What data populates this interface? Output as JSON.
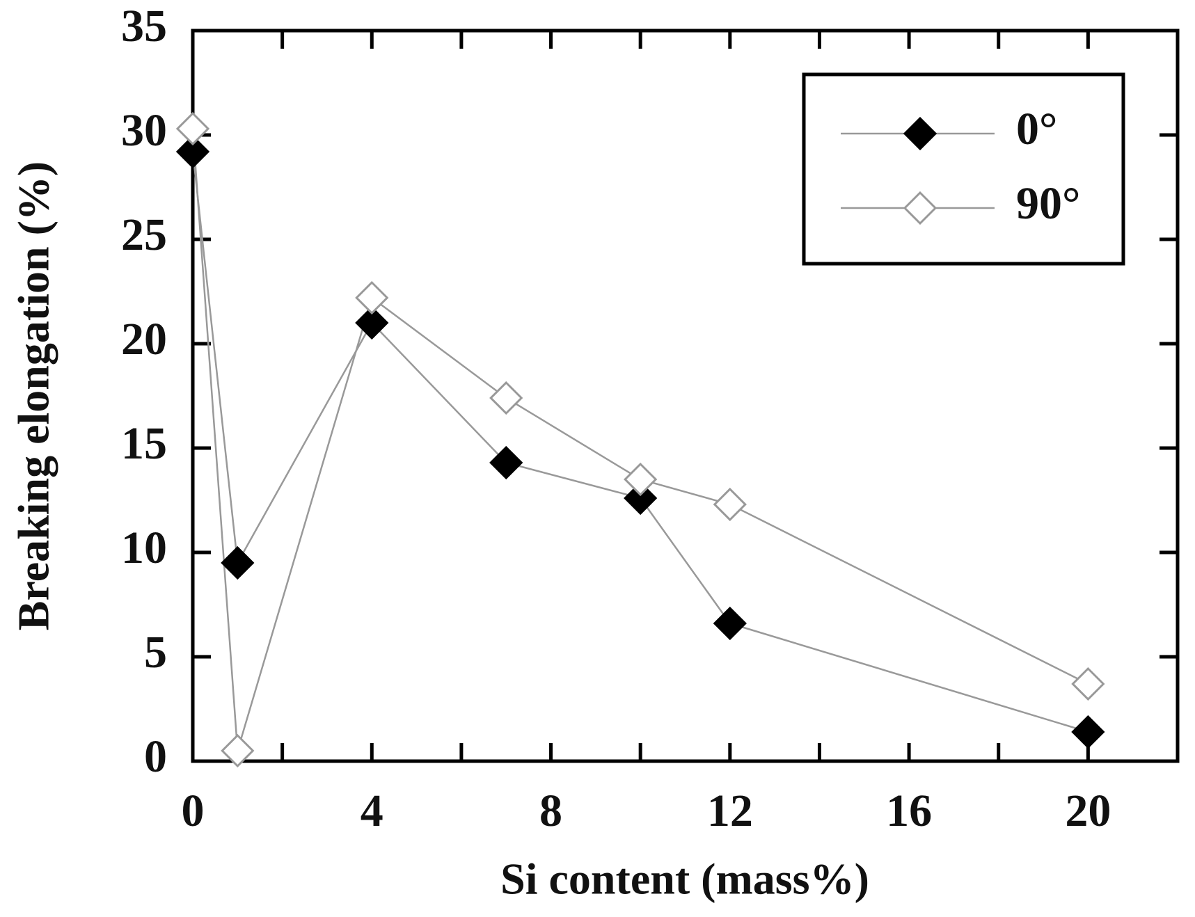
{
  "chart_data": {
    "type": "line",
    "x_label": "Si content (mass%)",
    "y_label": "Breaking elongation (%)",
    "xlim": [
      0,
      22
    ],
    "xticks": [
      0,
      4,
      8,
      12,
      16,
      20
    ],
    "ylim": [
      0,
      35
    ],
    "yticks": [
      0,
      5,
      10,
      15,
      20,
      25,
      30,
      35
    ],
    "legend_position": "upper right",
    "x": [
      0,
      1,
      4,
      7,
      10,
      12,
      20
    ],
    "series": [
      {
        "name": "0°",
        "color": "#000000",
        "values": [
          29.2,
          9.5,
          21,
          14.3,
          12.6,
          6.6,
          1.4
        ]
      },
      {
        "name": "90°",
        "color": "#ffffff",
        "values": [
          30.3,
          0.5,
          22.2,
          17.4,
          13.5,
          12.3,
          3.7
        ]
      }
    ]
  }
}
